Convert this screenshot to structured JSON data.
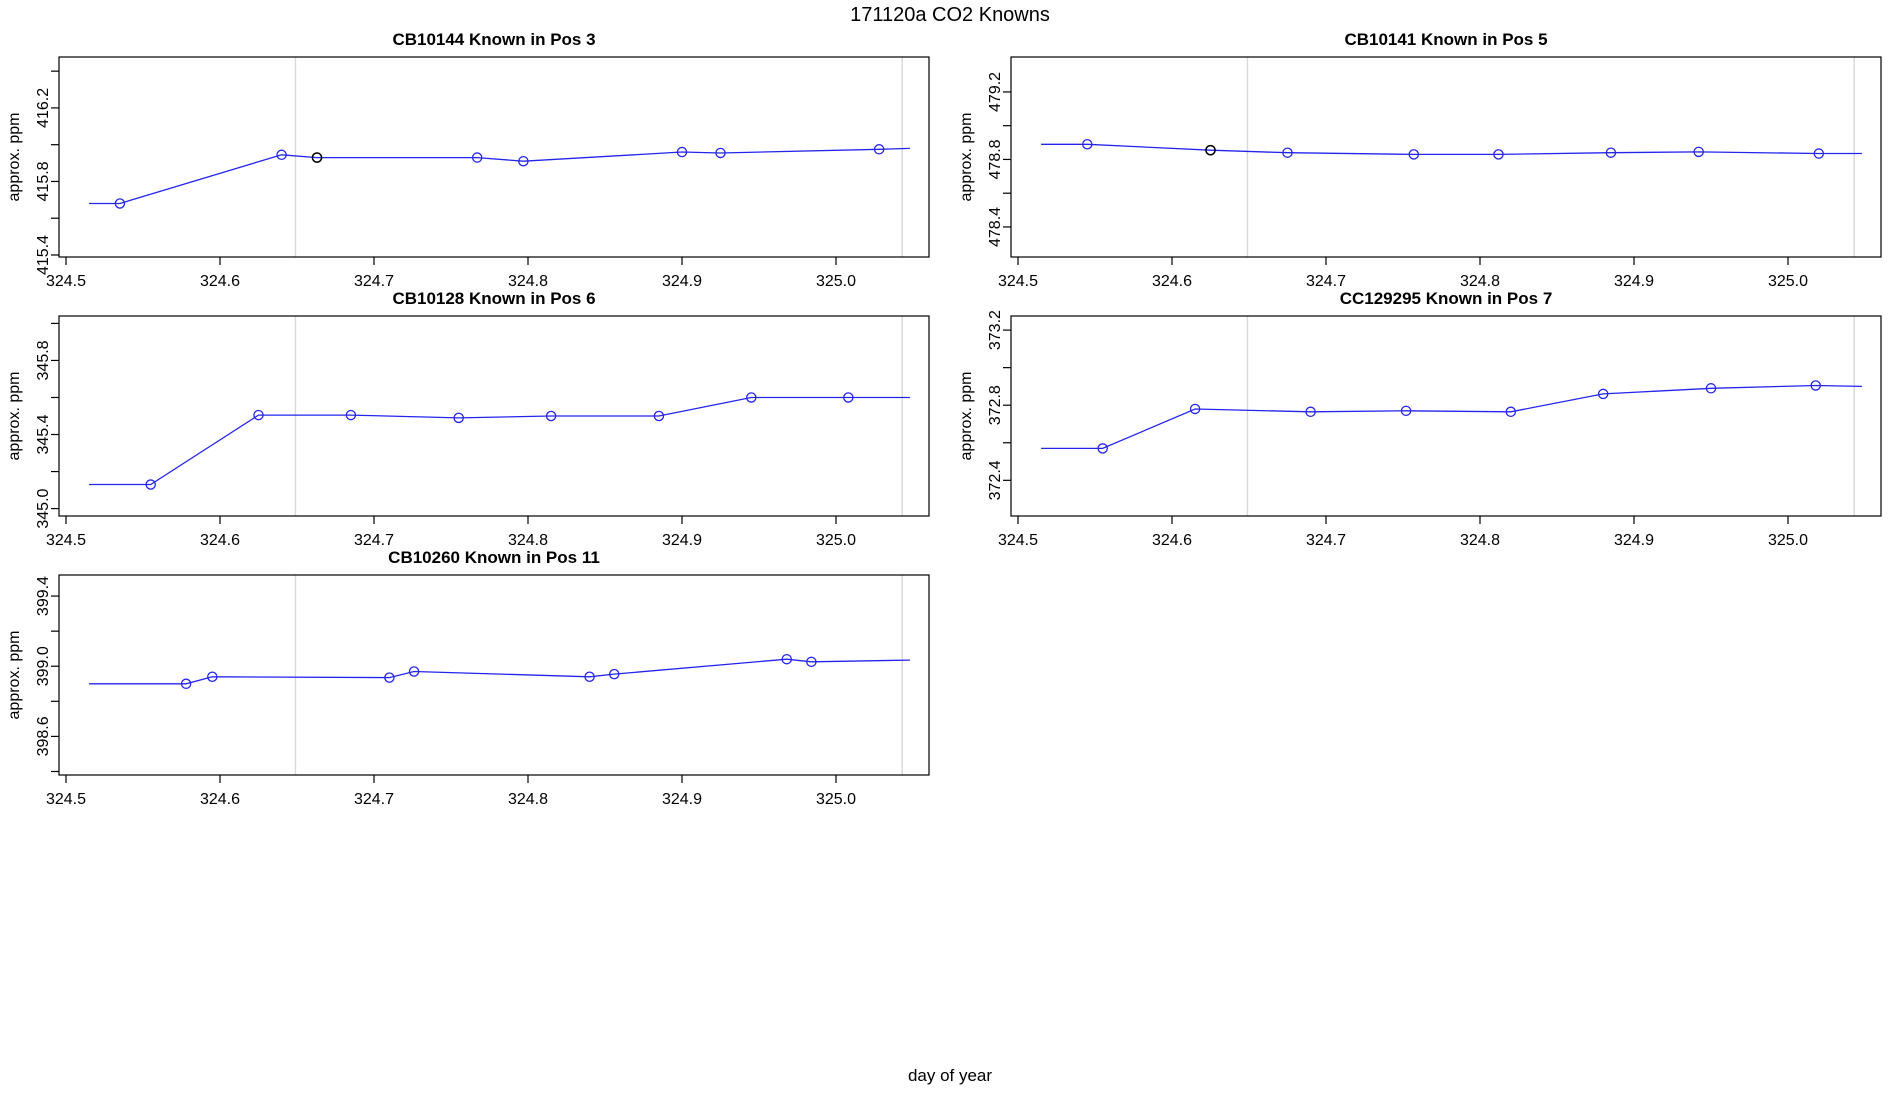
{
  "page": {
    "title": "171120a   CO2 Knowns",
    "xlabel": "day of year"
  },
  "colors": {
    "series": "#2424ee",
    "highlight_point": "#000000",
    "reference_line": "#d8d8d8",
    "axis": "#000000",
    "background": "#ffffff"
  },
  "chart_data": [
    {
      "type": "line",
      "title": "CB10144   Known in Pos 3",
      "ylabel": "approx. ppm",
      "xlabel": "day of year",
      "xlim": [
        324.495,
        325.06
      ],
      "ylim": [
        415.389,
        416.477
      ],
      "x_ticks": [
        324.5,
        324.6,
        324.7,
        324.8,
        324.9,
        325.0
      ],
      "y_ticks": [
        415.4,
        415.6,
        415.8,
        416.0,
        416.2,
        416.4
      ],
      "y_ticks_labeled": [
        415.4,
        415.8,
        416.2
      ],
      "vlines": [
        324.649,
        325.043
      ],
      "points": [
        {
          "x": 324.515,
          "y": 415.68,
          "marker": "none"
        },
        {
          "x": 324.535,
          "y": 415.68,
          "marker": "open-circle-blue"
        },
        {
          "x": 324.64,
          "y": 415.945,
          "marker": "open-circle-blue"
        },
        {
          "x": 324.663,
          "y": 415.93,
          "marker": "open-circle-black"
        },
        {
          "x": 324.767,
          "y": 415.93,
          "marker": "open-circle-blue"
        },
        {
          "x": 324.797,
          "y": 415.91,
          "marker": "open-circle-blue"
        },
        {
          "x": 324.9,
          "y": 415.96,
          "marker": "open-circle-blue"
        },
        {
          "x": 324.925,
          "y": 415.955,
          "marker": "open-circle-blue"
        },
        {
          "x": 325.028,
          "y": 415.975,
          "marker": "open-circle-blue"
        },
        {
          "x": 325.048,
          "y": 415.98,
          "marker": "none"
        }
      ]
    },
    {
      "type": "line",
      "title": "CB10141   Known in Pos 5",
      "ylabel": "approx. ppm",
      "xlabel": "day of year",
      "xlim": [
        324.495,
        325.06
      ],
      "ylim": [
        478.222,
        479.407
      ],
      "x_ticks": [
        324.5,
        324.6,
        324.7,
        324.8,
        324.9,
        325.0
      ],
      "y_ticks": [
        478.4,
        478.6,
        478.8,
        479.0,
        479.2
      ],
      "y_ticks_labeled": [
        478.4,
        478.8,
        479.2
      ],
      "vlines": [
        324.649,
        325.043
      ],
      "points": [
        {
          "x": 324.515,
          "y": 478.89,
          "marker": "none"
        },
        {
          "x": 324.545,
          "y": 478.89,
          "marker": "open-circle-blue"
        },
        {
          "x": 324.625,
          "y": 478.855,
          "marker": "open-circle-black"
        },
        {
          "x": 324.675,
          "y": 478.84,
          "marker": "open-circle-blue"
        },
        {
          "x": 324.757,
          "y": 478.83,
          "marker": "open-circle-blue"
        },
        {
          "x": 324.812,
          "y": 478.83,
          "marker": "open-circle-blue"
        },
        {
          "x": 324.885,
          "y": 478.84,
          "marker": "open-circle-blue"
        },
        {
          "x": 324.942,
          "y": 478.845,
          "marker": "open-circle-blue"
        },
        {
          "x": 325.02,
          "y": 478.835,
          "marker": "open-circle-blue"
        },
        {
          "x": 325.048,
          "y": 478.835,
          "marker": "none"
        }
      ]
    },
    {
      "type": "line",
      "title": "CB10128   Known in Pos 6",
      "ylabel": "approx. ppm",
      "xlabel": "day of year",
      "xlim": [
        324.495,
        325.06
      ],
      "ylim": [
        344.96,
        346.04
      ],
      "x_ticks": [
        324.5,
        324.6,
        324.7,
        324.8,
        324.9,
        325.0
      ],
      "y_ticks": [
        345.0,
        345.2,
        345.4,
        345.6,
        345.8,
        346.0
      ],
      "y_ticks_labeled": [
        345.0,
        345.4,
        345.8
      ],
      "vlines": [
        324.649,
        325.043
      ],
      "points": [
        {
          "x": 324.515,
          "y": 345.13,
          "marker": "none"
        },
        {
          "x": 324.555,
          "y": 345.13,
          "marker": "open-circle-blue"
        },
        {
          "x": 324.625,
          "y": 345.505,
          "marker": "open-circle-blue"
        },
        {
          "x": 324.685,
          "y": 345.505,
          "marker": "open-circle-blue"
        },
        {
          "x": 324.755,
          "y": 345.49,
          "marker": "open-circle-blue"
        },
        {
          "x": 324.815,
          "y": 345.5,
          "marker": "open-circle-blue"
        },
        {
          "x": 324.885,
          "y": 345.5,
          "marker": "open-circle-blue"
        },
        {
          "x": 324.945,
          "y": 345.6,
          "marker": "open-circle-blue"
        },
        {
          "x": 325.008,
          "y": 345.6,
          "marker": "open-circle-blue"
        },
        {
          "x": 325.048,
          "y": 345.6,
          "marker": "none"
        }
      ]
    },
    {
      "type": "line",
      "title": "CC129295   Known in Pos 7",
      "ylabel": "approx. ppm",
      "xlabel": "day of year",
      "xlim": [
        324.495,
        325.06
      ],
      "ylim": [
        372.21,
        373.275
      ],
      "x_ticks": [
        324.5,
        324.6,
        324.7,
        324.8,
        324.9,
        325.0
      ],
      "y_ticks": [
        372.4,
        372.6,
        372.8,
        373.0,
        373.2
      ],
      "y_ticks_labeled": [
        372.4,
        372.8,
        373.2
      ],
      "vlines": [
        324.649,
        325.043
      ],
      "points": [
        {
          "x": 324.515,
          "y": 372.57,
          "marker": "none"
        },
        {
          "x": 324.555,
          "y": 372.57,
          "marker": "open-circle-blue"
        },
        {
          "x": 324.615,
          "y": 372.78,
          "marker": "open-circle-blue"
        },
        {
          "x": 324.69,
          "y": 372.765,
          "marker": "open-circle-blue"
        },
        {
          "x": 324.752,
          "y": 372.77,
          "marker": "open-circle-blue"
        },
        {
          "x": 324.82,
          "y": 372.765,
          "marker": "open-circle-blue"
        },
        {
          "x": 324.88,
          "y": 372.86,
          "marker": "open-circle-blue"
        },
        {
          "x": 324.95,
          "y": 372.89,
          "marker": "open-circle-blue"
        },
        {
          "x": 325.018,
          "y": 372.905,
          "marker": "open-circle-blue"
        },
        {
          "x": 325.048,
          "y": 372.9,
          "marker": "none"
        }
      ]
    },
    {
      "type": "line",
      "title": "CB10260   Known in Pos 11",
      "ylabel": "approx. ppm",
      "xlabel": "day of year",
      "xlim": [
        324.495,
        325.06
      ],
      "ylim": [
        398.38,
        399.52
      ],
      "x_ticks": [
        324.5,
        324.6,
        324.7,
        324.8,
        324.9,
        325.0
      ],
      "y_ticks": [
        398.4,
        398.6,
        398.8,
        399.0,
        399.2,
        399.4
      ],
      "y_ticks_labeled": [
        398.6,
        399.0,
        399.4
      ],
      "vlines": [
        324.649,
        325.043
      ],
      "points": [
        {
          "x": 324.515,
          "y": 398.9,
          "marker": "none"
        },
        {
          "x": 324.578,
          "y": 398.9,
          "marker": "open-circle-blue"
        },
        {
          "x": 324.595,
          "y": 398.94,
          "marker": "open-circle-blue"
        },
        {
          "x": 324.71,
          "y": 398.935,
          "marker": "open-circle-blue"
        },
        {
          "x": 324.726,
          "y": 398.97,
          "marker": "open-circle-blue"
        },
        {
          "x": 324.84,
          "y": 398.94,
          "marker": "open-circle-blue"
        },
        {
          "x": 324.856,
          "y": 398.955,
          "marker": "open-circle-blue"
        },
        {
          "x": 324.968,
          "y": 399.04,
          "marker": "open-circle-blue"
        },
        {
          "x": 324.984,
          "y": 399.025,
          "marker": "open-circle-blue"
        },
        {
          "x": 325.048,
          "y": 399.035,
          "marker": "none"
        }
      ]
    }
  ]
}
